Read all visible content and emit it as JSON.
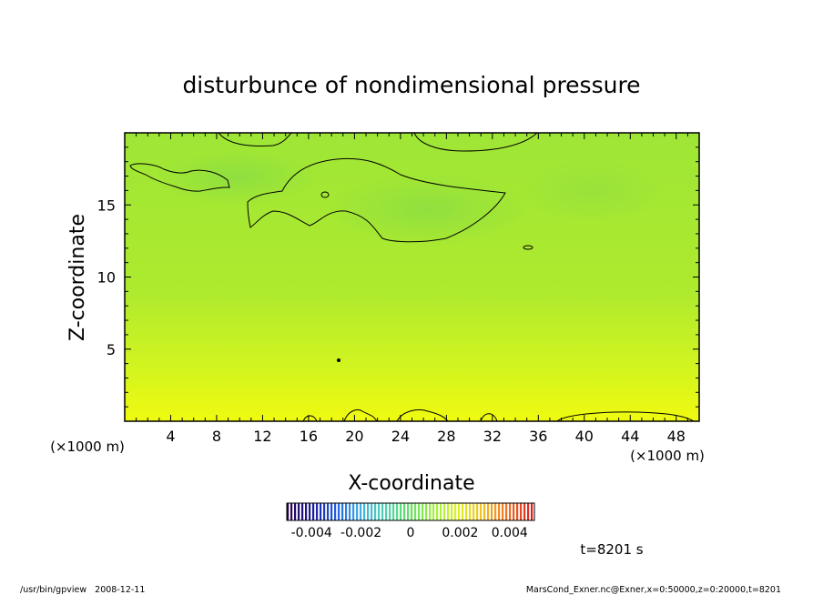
{
  "chart_data": {
    "type": "heatmap",
    "title": "disturbunce of nondimensional pressure",
    "xlabel": "X-coordinate",
    "ylabel": "Z-coordinate",
    "x_unit": "(×1000 m)",
    "y_unit": "(×1000 m)",
    "xlim": [
      0,
      50
    ],
    "ylim": [
      0,
      20
    ],
    "x_ticks": [
      4,
      8,
      12,
      16,
      20,
      24,
      28,
      32,
      36,
      40,
      44,
      48
    ],
    "y_ticks": [
      5,
      10,
      15
    ],
    "colorbar": {
      "range": [
        -0.005,
        0.005
      ],
      "ticks": [
        "-0.004",
        "-0.002",
        "0",
        "0.002",
        "0.004"
      ],
      "colors": [
        "#2a0050",
        "#1a1a9a",
        "#2060e0",
        "#40b0e0",
        "#50d0b0",
        "#60e060",
        "#a0f040",
        "#e0f020",
        "#f0c020",
        "#f07020",
        "#e02020"
      ]
    },
    "field_colors": {
      "top": "#9ee636",
      "middle": "#aeea2e",
      "bottom": "#f0fa10"
    },
    "time_label": "t=8201 s"
  },
  "footer": {
    "left": "/usr/bin/gpview   2008-12-11",
    "right": "MarsCond_Exner.nc@Exner,x=0:50000,z=0:20000,t=8201"
  }
}
